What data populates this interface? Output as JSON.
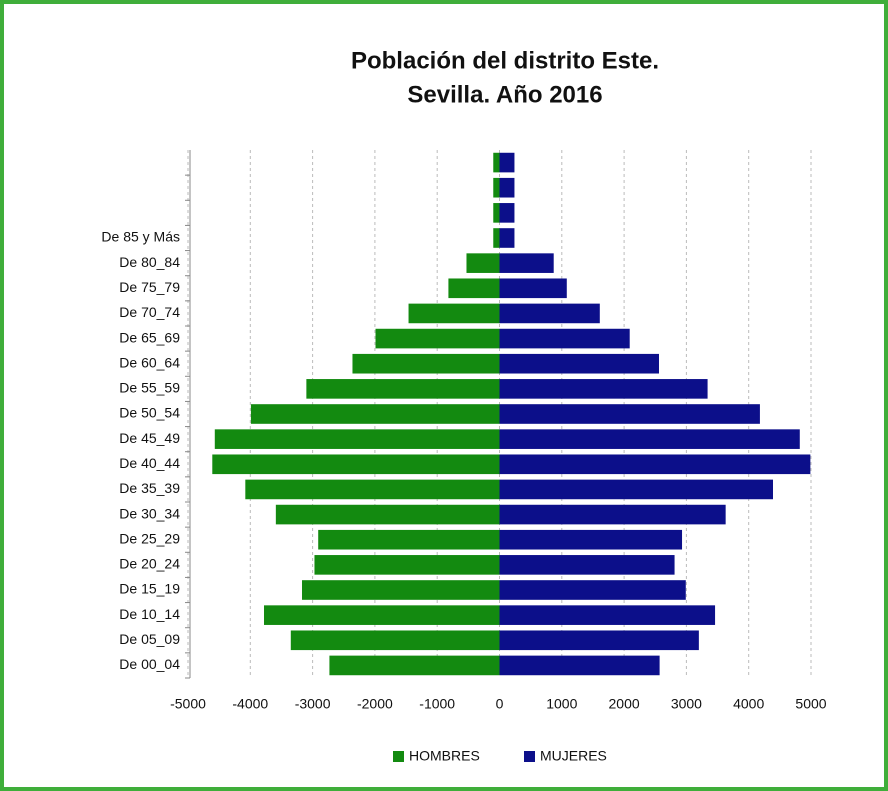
{
  "chart_data": {
    "type": "bar",
    "orientation": "horizontal",
    "stacked": true,
    "title": [
      "Población del distrito Este.",
      "Sevilla. Año 2016"
    ],
    "categories": [
      "De 00_04",
      "De 05_09",
      "De 10_14",
      "De 15_19",
      "De 20_24",
      "De 25_29",
      "De 30_34",
      "De 35_39",
      "De 40_44",
      "De 45_49",
      "De 50_54",
      "De 55_59",
      "De 60_64",
      "De 65_69",
      "De 70_74",
      "De 75_79",
      "De 80_84",
      "De 85 y Más",
      null,
      null,
      null
    ],
    "series": [
      {
        "name": "HOMBRES",
        "color": "#138a10",
        "values": [
          -2730,
          -3350,
          -3780,
          -3170,
          -2970,
          -2910,
          -3590,
          -4080,
          -4610,
          -4570,
          -3990,
          -3100,
          -2360,
          -1990,
          -1460,
          -820,
          -530,
          -100,
          -100,
          -100,
          -100
        ]
      },
      {
        "name": "MUJERES",
        "color": "#0c0f8a",
        "values": [
          2570,
          3200,
          3460,
          2990,
          2810,
          2930,
          3630,
          4390,
          4990,
          4820,
          4180,
          3340,
          2560,
          2090,
          1610,
          1080,
          870,
          240,
          240,
          240,
          240
        ]
      }
    ],
    "xlim": [
      -5000,
      5000
    ],
    "xticks": [
      -5000,
      -4000,
      -3000,
      -2000,
      -1000,
      0,
      1000,
      2000,
      3000,
      4000,
      5000
    ],
    "grid": true,
    "legend": "bottom"
  }
}
